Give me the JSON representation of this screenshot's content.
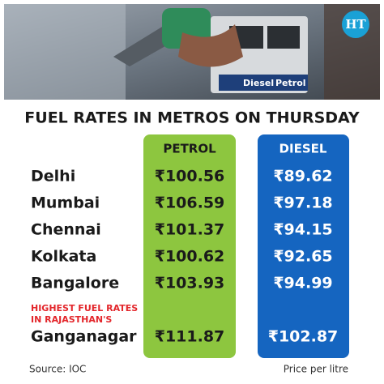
{
  "logo": "HT",
  "photo_labels": [
    "Diesel",
    "Petrol"
  ],
  "title": "FUEL RATES IN METROS ON THURSDAY",
  "table": {
    "columns": [
      "PETROL",
      "DIESEL"
    ],
    "rows": [
      [
        "Delhi",
        "₹100.56",
        "₹89.62"
      ],
      [
        "Mumbai",
        "₹106.59",
        "₹97.18"
      ],
      [
        "Chennai",
        "₹101.37",
        "₹94.15"
      ],
      [
        "Kolkata",
        "₹100.62",
        "₹92.65"
      ],
      [
        "Bangalore",
        "₹103.93",
        "₹94.99"
      ]
    ],
    "highlight": [
      "HIGHEST FUEL RATES",
      "IN RAJASTHAN'S"
    ],
    "special_row": [
      "Ganganagar",
      "₹111.87",
      "₹102.87"
    ]
  },
  "footer": {
    "source": "Source: IOC",
    "unit": "Price per litre"
  }
}
